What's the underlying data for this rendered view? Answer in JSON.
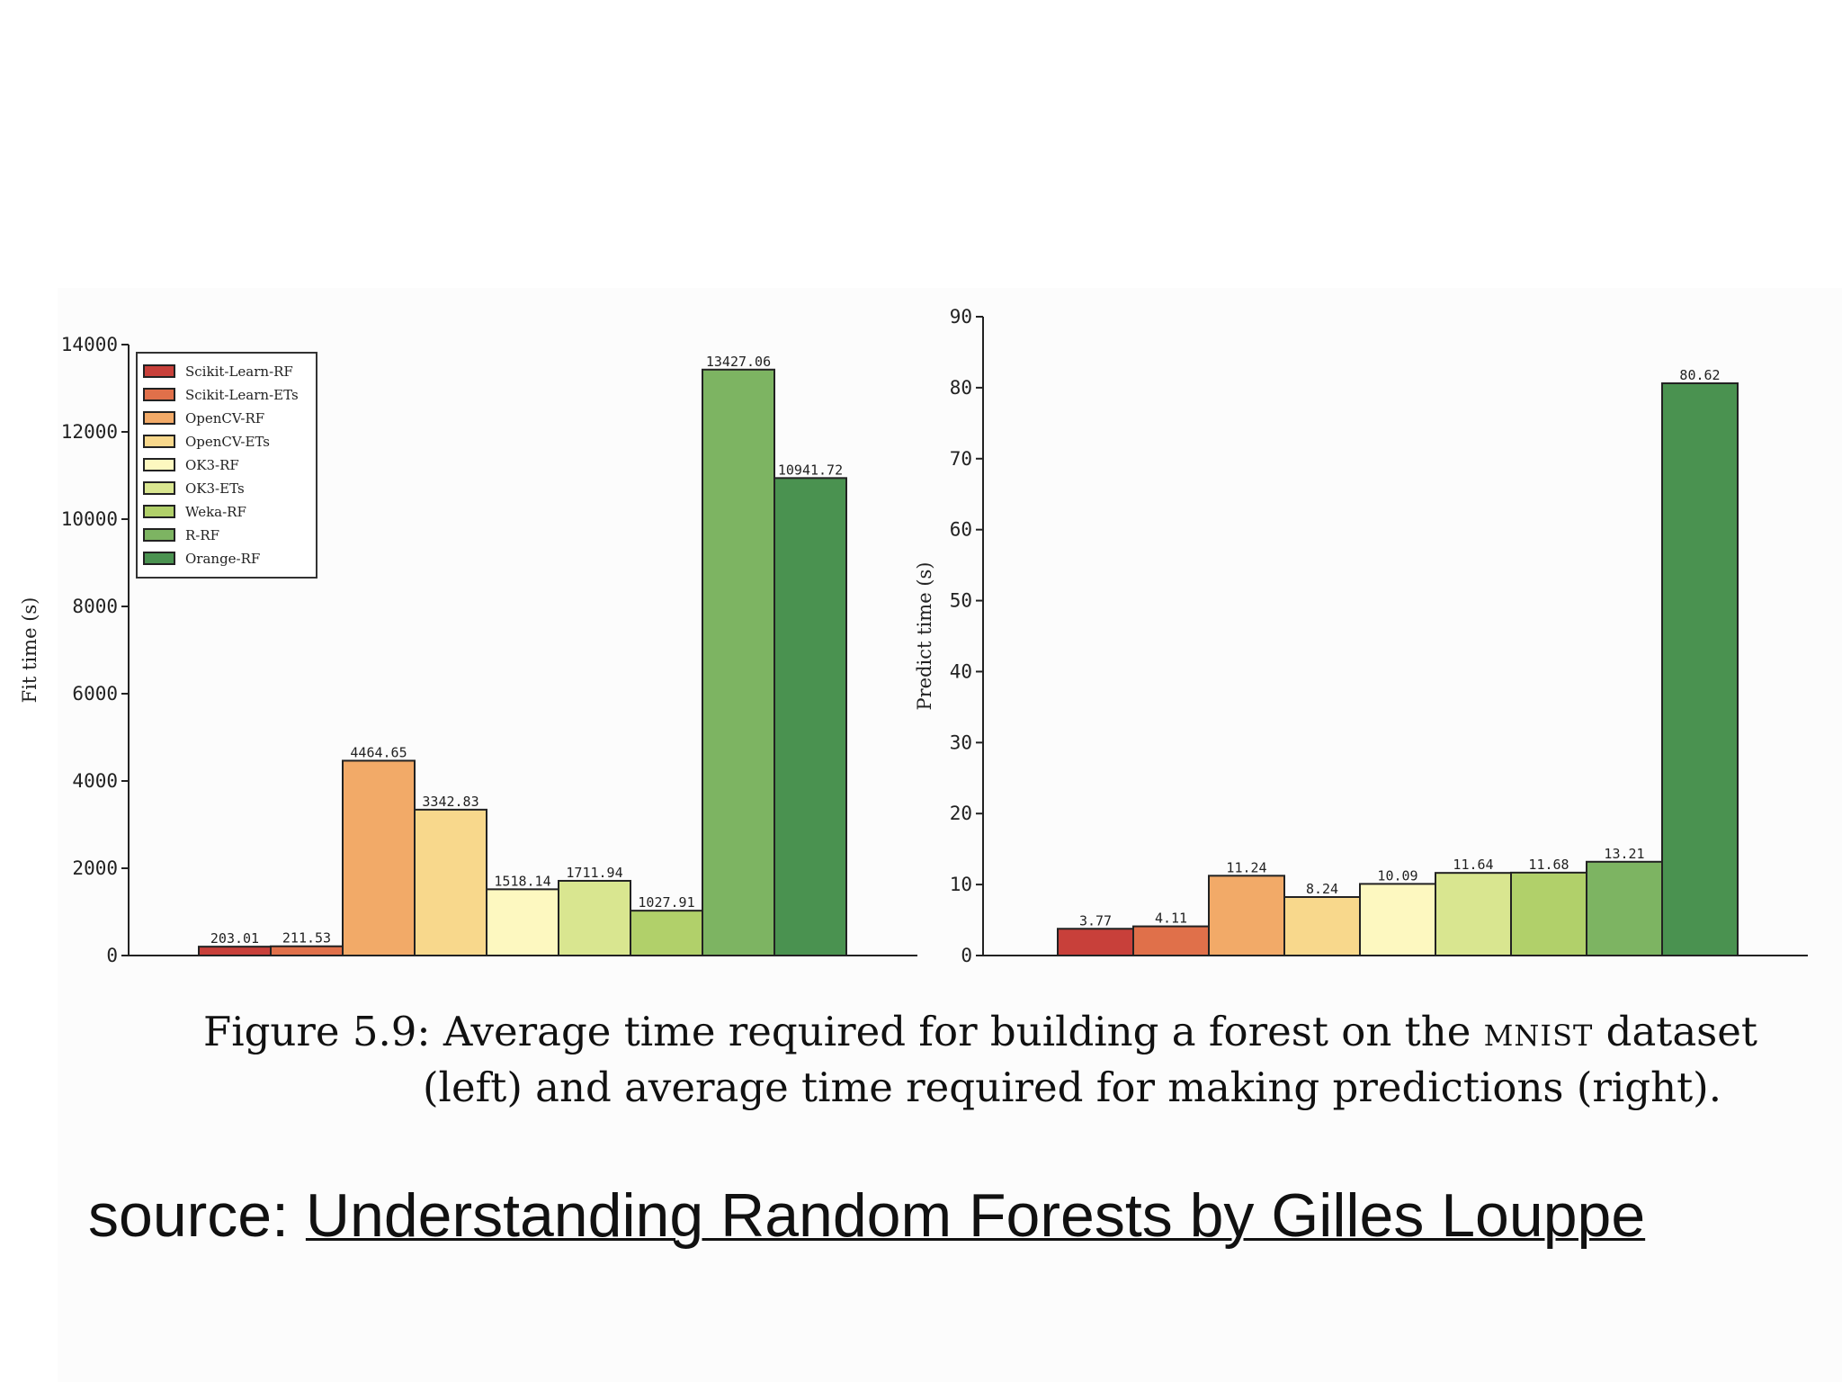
{
  "caption": {
    "prefix": "Figure 5.9: Average time required for building a forest on the ",
    "dataset": "MNIST",
    "suffix": " dataset",
    "line2": "(left) and average time required for making predictions (right)."
  },
  "source": {
    "prefix": "source: ",
    "link_text": "Understanding Random Forests by Gilles Louppe"
  },
  "colors": [
    "#c8403a",
    "#e0704a",
    "#f2aa68",
    "#f8d88c",
    "#fdf8c0",
    "#d9e690",
    "#b1d06a",
    "#7db462",
    "#4a9250"
  ],
  "chart_data": [
    {
      "type": "bar",
      "categories": [
        "Scikit-Learn-RF",
        "Scikit-Learn-ETs",
        "OpenCV-RF",
        "OpenCV-ETs",
        "OK3-RF",
        "OK3-ETs",
        "Weka-RF",
        "R-RF",
        "Orange-RF"
      ],
      "values": [
        203.01,
        211.53,
        4464.65,
        3342.83,
        1518.14,
        1711.94,
        1027.91,
        13427.06,
        10941.72
      ],
      "value_labels": [
        "203.01",
        "211.53",
        "4464.65",
        "3342.83",
        "1518.14",
        "1711.94",
        "1027.91",
        "13427.06",
        "10941.72"
      ],
      "ylabel": "Fit time (s)",
      "xlabel": "",
      "ylim": [
        0,
        14000
      ],
      "yticks": [
        "0",
        "2000",
        "4000",
        "6000",
        "8000",
        "10000",
        "12000",
        "14000"
      ],
      "legend_position": "top-left",
      "grid": false
    },
    {
      "type": "bar",
      "categories": [
        "Scikit-Learn-RF",
        "Scikit-Learn-ETs",
        "OpenCV-RF",
        "OpenCV-ETs",
        "OK3-RF",
        "OK3-ETs",
        "Weka-RF",
        "R-RF",
        "Orange-RF"
      ],
      "values": [
        3.77,
        4.11,
        11.24,
        8.24,
        10.09,
        11.64,
        11.68,
        13.21,
        80.62
      ],
      "value_labels": [
        "3.77",
        "4.11",
        "11.24",
        "8.24",
        "10.09",
        "11.64",
        "11.68",
        "13.21",
        "80.62"
      ],
      "ylabel": "Predict time (s)",
      "xlabel": "",
      "ylim": [
        0,
        90
      ],
      "yticks": [
        "0",
        "10",
        "20",
        "30",
        "40",
        "50",
        "60",
        "70",
        "80",
        "90"
      ],
      "grid": false
    }
  ]
}
